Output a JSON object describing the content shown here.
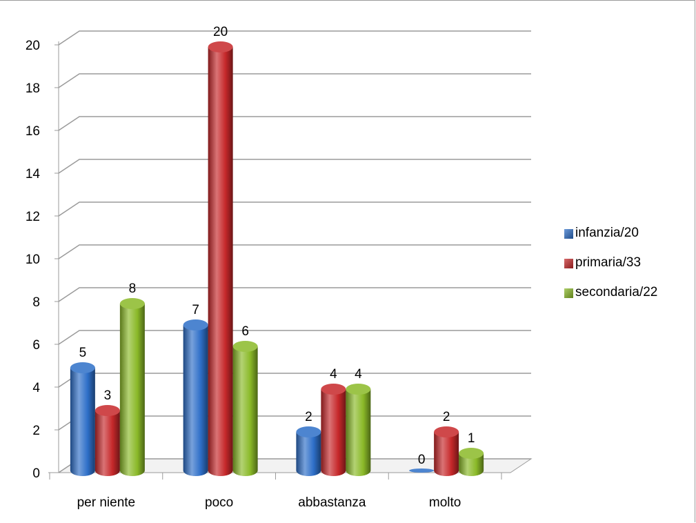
{
  "chart_data": {
    "type": "bar",
    "categories": [
      "per niente",
      "poco",
      "abbastanza",
      "molto"
    ],
    "series": [
      {
        "name": "infanzia/20",
        "values": [
          5,
          7,
          2,
          0
        ],
        "color": "#2e6fc8"
      },
      {
        "name": "primaria/33",
        "values": [
          3,
          20,
          4,
          2
        ],
        "color": "#c6282a"
      },
      {
        "name": "secondaria/22",
        "values": [
          8,
          6,
          4,
          1
        ],
        "color": "#8ab928"
      }
    ],
    "ylim": [
      0,
      20
    ],
    "yticks": [
      "0",
      "2",
      "4",
      "6",
      "8",
      "10",
      "12",
      "14",
      "16",
      "18",
      "20"
    ],
    "grid": true,
    "legend": "right",
    "style": "3d-cylinder"
  }
}
